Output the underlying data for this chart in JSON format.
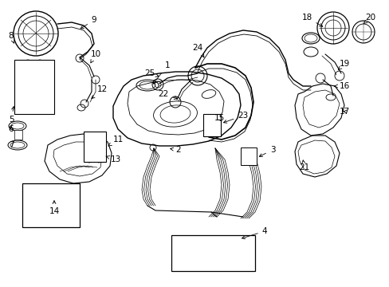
{
  "background_color": "#ffffff",
  "line_color": "#000000",
  "fig_width": 4.89,
  "fig_height": 3.6,
  "dpi": 100
}
